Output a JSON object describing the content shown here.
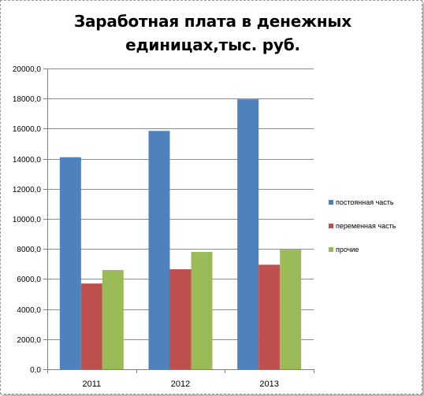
{
  "chart_data": {
    "type": "bar",
    "title": "Заработная плата в денежных единицах,тыс. руб.",
    "xlabel": "",
    "ylabel": "",
    "categories": [
      "2011",
      "2012",
      "2013"
    ],
    "series": [
      {
        "name": "постоянная часть",
        "color": "#4f81bd",
        "values": [
          14100,
          15850,
          17950
        ]
      },
      {
        "name": "переменная часть",
        "color": "#c0504d",
        "values": [
          5700,
          6650,
          6950
        ]
      },
      {
        "name": "прочие",
        "color": "#9bbb59",
        "values": [
          6600,
          7800,
          7950
        ]
      }
    ],
    "ylim": [
      0,
      20000
    ],
    "yticks": [
      "0,0",
      "2000,0",
      "4000,0",
      "6000,0",
      "8000,0",
      "10000,0",
      "12000,0",
      "14000,0",
      "16000,0",
      "18000,0",
      "20000,0"
    ],
    "grid": true,
    "legend_position": "right"
  }
}
